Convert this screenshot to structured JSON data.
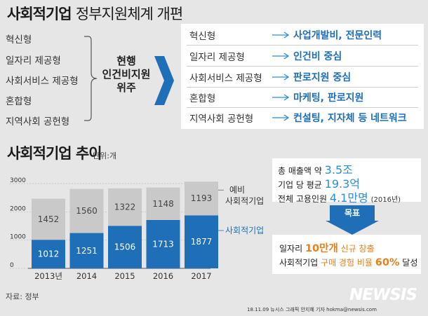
{
  "header": {
    "title_bold": "사회적기업",
    "title_rest": "정부지원체계 개편"
  },
  "left_types": [
    "혁신형",
    "일자리 제공형",
    "사회서비스 제공형",
    "혼합형",
    "지역사회 공헌형"
  ],
  "current_label": [
    "현행",
    "인건비지원",
    "위주"
  ],
  "new_support": [
    {
      "type": "혁신형",
      "support": "사업개발비, 전문인력"
    },
    {
      "type": "일자리 제공형",
      "support": "인건비 중심"
    },
    {
      "type": "사회서비스 제공형",
      "support": "판로지원 중심"
    },
    {
      "type": "혼합형",
      "support": "마케팅, 판로지원"
    },
    {
      "type": "지역사회 공헌형",
      "support": "컨설팅, 지자체 등 네트워크"
    }
  ],
  "chart_title": "사회적기업 추이",
  "unit_label": "단위:개",
  "chart_data": {
    "type": "bar",
    "stacked": true,
    "title": "사회적기업 추이",
    "unit": "단위:개",
    "categories": [
      "2013년",
      "2014",
      "2015",
      "2016",
      "2017"
    ],
    "series": [
      {
        "name": "사회적기업",
        "values": [
          1012,
          1251,
          1506,
          1713,
          1877
        ],
        "color": "#1f6fb8"
      },
      {
        "name": "예비 사회적기업",
        "values": [
          1452,
          1560,
          1322,
          1148,
          1193
        ],
        "color": "#c9c9c9"
      }
    ],
    "yticks": [
      "3000",
      "2000",
      "1000",
      "0"
    ],
    "ylim": [
      0,
      3000
    ],
    "legend_gray": [
      "예비",
      "사회적기업"
    ],
    "legend_blue": "사회적기업"
  },
  "stats": {
    "sales_label": "총 매출액 약",
    "sales_value": "3.5조",
    "avg_label": "기업 당 평균",
    "avg_value": "19.3억",
    "emp_label": "전체 고용인원",
    "emp_value": "4.1만명",
    "emp_year": "(2016년)"
  },
  "goal": {
    "label": "목표",
    "line1_prefix": "일자리",
    "line1_num": "10만개",
    "line1_hl": "신규 창출",
    "line2_prefix": "사회적기업",
    "line2_hl": "구매 경험 비율",
    "line2_num": "60%",
    "line2_suffix": "달성"
  },
  "source": "자료: 정부",
  "credit": "18.11.09 뉴시스 그래픽 안지혜 기자 hokma@newsis.com",
  "logo": "NEWSIS",
  "colors": {
    "blue": "#1f6fb8",
    "gray": "#c9c9c9",
    "orange": "#e6801e",
    "light_blue": "#2b8fd6"
  }
}
